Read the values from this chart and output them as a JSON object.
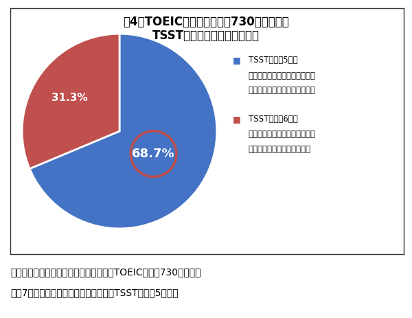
{
  "title_line1": "围4　TOEICテストスコア「730点以上」の",
  "title_line2": "TSST受験者のスピーキング力",
  "slices": [
    68.7,
    31.3
  ],
  "colors": [
    "#4472C4",
    "#C0504D"
  ],
  "labels_pct": [
    "68.7%",
    "31.3%"
  ],
  "legend1_title": "TSSTレベル5以下",
  "legend1_line2": "（＝スピーキング力の面で英語",
  "legend1_line3": "を使った業務の遂行は難しい）",
  "legend2_title": "TSSTレベル6以上",
  "legend2_line2": "（＝スピーキング力の面で英語",
  "legend2_line3": "を使って業務が遂行できる）",
  "footer_line1": "リスニング・リーディングが得意な人（TOEICテスト730点以上）",
  "footer_line2": "の約7割は、英語スピーキングが苦手（TSSTレベル5以下）",
  "background_color": "#FFFFFF",
  "border_color": "#333333",
  "circle_color": "#C0504D"
}
